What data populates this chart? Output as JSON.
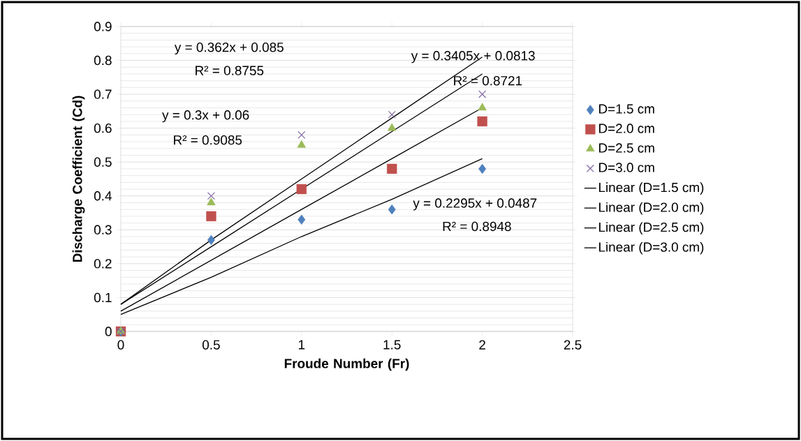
{
  "chart_data": {
    "type": "scatter",
    "xlabel": "Froude Number (Fr)",
    "ylabel": "Discharge Coefficient (Cd)",
    "x": [
      0,
      0.5,
      1,
      1.5,
      2
    ],
    "series": [
      {
        "name": "D=1.5 cm",
        "color": "#4f81bd",
        "marker": "diamond",
        "values": [
          0,
          0.27,
          0.33,
          0.36,
          0.48
        ]
      },
      {
        "name": "D=2.0 cm",
        "color": "#c0504d",
        "marker": "square",
        "values": [
          0,
          0.34,
          0.42,
          0.48,
          0.62
        ]
      },
      {
        "name": "D=2.5 cm",
        "color": "#9bbb59",
        "marker": "triangle",
        "values": [
          0,
          0.38,
          0.55,
          0.6,
          0.66
        ]
      },
      {
        "name": "D=3.0 cm",
        "color": "#8064a2",
        "marker": "cross",
        "values": [
          0,
          0.4,
          0.58,
          0.64,
          0.7
        ]
      },
      {
        "name": "Linear (D=1.5 cm)",
        "type": "line",
        "color": "#000000",
        "marker": "none",
        "values": [
          0.05,
          0.16,
          0.28,
          0.39,
          0.51
        ]
      },
      {
        "name": "Linear (D=2.0 cm)",
        "type": "line",
        "color": "#000000",
        "marker": "none",
        "values": [
          0.06,
          0.21,
          0.36,
          0.51,
          0.66
        ]
      },
      {
        "name": "Linear (D=2.5 cm)",
        "type": "line",
        "color": "#000000",
        "marker": "none",
        "values": [
          0.08,
          0.25,
          0.42,
          0.59,
          0.76
        ]
      },
      {
        "name": "Linear (D=3.0 cm)",
        "type": "line",
        "color": "#000000",
        "marker": "none",
        "values": [
          0.08,
          0.27,
          0.45,
          0.63,
          0.81
        ]
      }
    ],
    "annotations": [
      "y = 0.362x + 0.085",
      "R² = 0.8755",
      "y = 0.3405x + 0.0813",
      "R² = 0.8721",
      "y = 0.3x + 0.06",
      "R² = 0.9085",
      "y = 0.2295x + 0.0487",
      "R² = 0.8948"
    ],
    "xlim": [
      0,
      2.5
    ],
    "xticks": [
      0,
      0.5,
      1,
      1.5,
      2,
      2.5
    ],
    "ylim": [
      0,
      0.9
    ],
    "yticks": [
      0,
      0.1,
      0.2,
      0.3,
      0.4,
      0.5,
      0.6,
      0.7,
      0.8,
      0.9
    ],
    "grid": "y",
    "legend": "right"
  }
}
